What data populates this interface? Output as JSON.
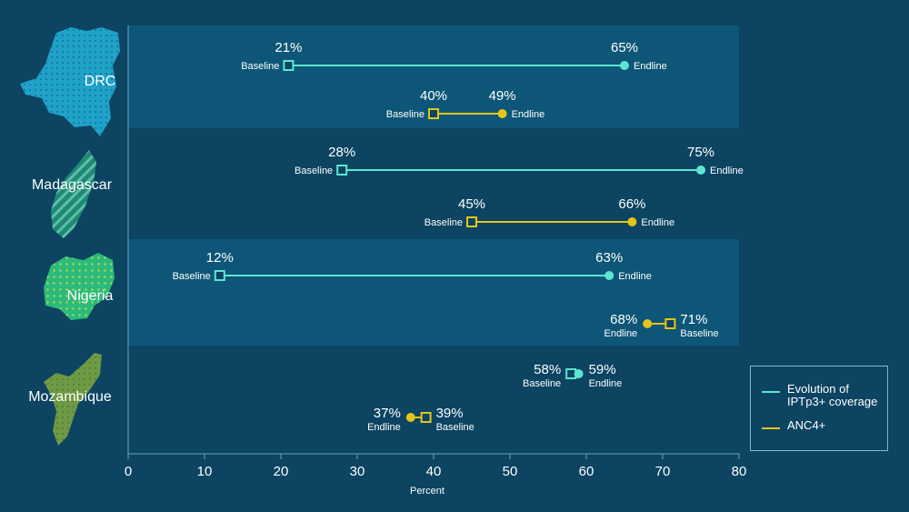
{
  "colors": {
    "background": "#0c4462",
    "band_light": "#0d5677",
    "iptp3": "#5ce6d2",
    "anc4": "#e4c51a",
    "map_drc": "#1fa2c9",
    "map_madagascar": "#1d8a75",
    "map_nigeria": "#2bba7a",
    "map_mozambique": "#6f9a45"
  },
  "legend": {
    "items": [
      {
        "label": "Evolution of IPTp3+ coverage",
        "color": "#5ce6d2",
        "icon": "line-swatch"
      },
      {
        "label": "ANC4+",
        "color": "#e4c51a",
        "icon": "line-swatch"
      }
    ]
  },
  "chart_data": {
    "type": "dumbbell",
    "xlabel": "Percent",
    "xlim": [
      0,
      80
    ],
    "xticks": [
      "0",
      "10",
      "20",
      "30",
      "40",
      "50",
      "60",
      "70",
      "80"
    ],
    "marker_labels": {
      "baseline": "Baseline",
      "endline": "Endline"
    },
    "countries": [
      {
        "name": "DRC",
        "rows": [
          {
            "series": "iptp3",
            "baseline": 21,
            "endline": 65,
            "baseline_label": "21%",
            "endline_label": "65%"
          },
          {
            "series": "anc4",
            "baseline": 40,
            "endline": 49,
            "baseline_label": "40%",
            "endline_label": "49%"
          }
        ]
      },
      {
        "name": "Madagascar",
        "rows": [
          {
            "series": "iptp3",
            "baseline": 28,
            "endline": 75,
            "baseline_label": "28%",
            "endline_label": "75%"
          },
          {
            "series": "anc4",
            "baseline": 45,
            "endline": 66,
            "baseline_label": "45%",
            "endline_label": "66%"
          }
        ]
      },
      {
        "name": "Nigeria",
        "rows": [
          {
            "series": "iptp3",
            "baseline": 12,
            "endline": 63,
            "baseline_label": "12%",
            "endline_label": "63%"
          },
          {
            "series": "anc4",
            "baseline": 71,
            "endline": 68,
            "baseline_label": "71%",
            "endline_label": "68%"
          }
        ]
      },
      {
        "name": "Mozambique",
        "rows": [
          {
            "series": "iptp3",
            "baseline": 58,
            "endline": 59,
            "baseline_label": "58%",
            "endline_label": "59%"
          },
          {
            "series": "anc4",
            "baseline": 39,
            "endline": 37,
            "baseline_label": "39%",
            "endline_label": "37%"
          }
        ]
      }
    ]
  }
}
